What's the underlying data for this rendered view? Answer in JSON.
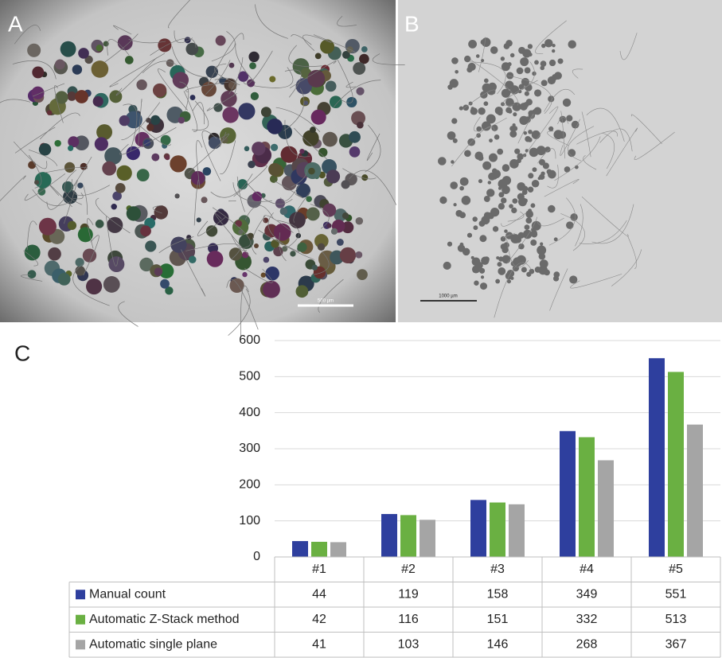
{
  "panel_labels": [
    "A",
    "B",
    "C"
  ],
  "scale_bars": [
    "500 µm",
    "1000 µm"
  ],
  "chart_data": {
    "type": "bar",
    "categories": [
      "#1",
      "#2",
      "#3",
      "#4",
      "#5"
    ],
    "series": [
      {
        "name": "Manual count",
        "color": "#2e3f9e",
        "values": [
          44,
          119,
          158,
          349,
          551
        ]
      },
      {
        "name": "Automatic Z-Stack method",
        "color": "#6ab042",
        "values": [
          42,
          116,
          151,
          332,
          513
        ]
      },
      {
        "name": "Automatic single plane",
        "color": "#a5a5a5",
        "values": [
          41,
          103,
          146,
          268,
          367
        ]
      }
    ],
    "ylim": [
      0,
      600
    ],
    "yticks": [
      0,
      100,
      200,
      300,
      400,
      500,
      600
    ],
    "grid": true
  }
}
